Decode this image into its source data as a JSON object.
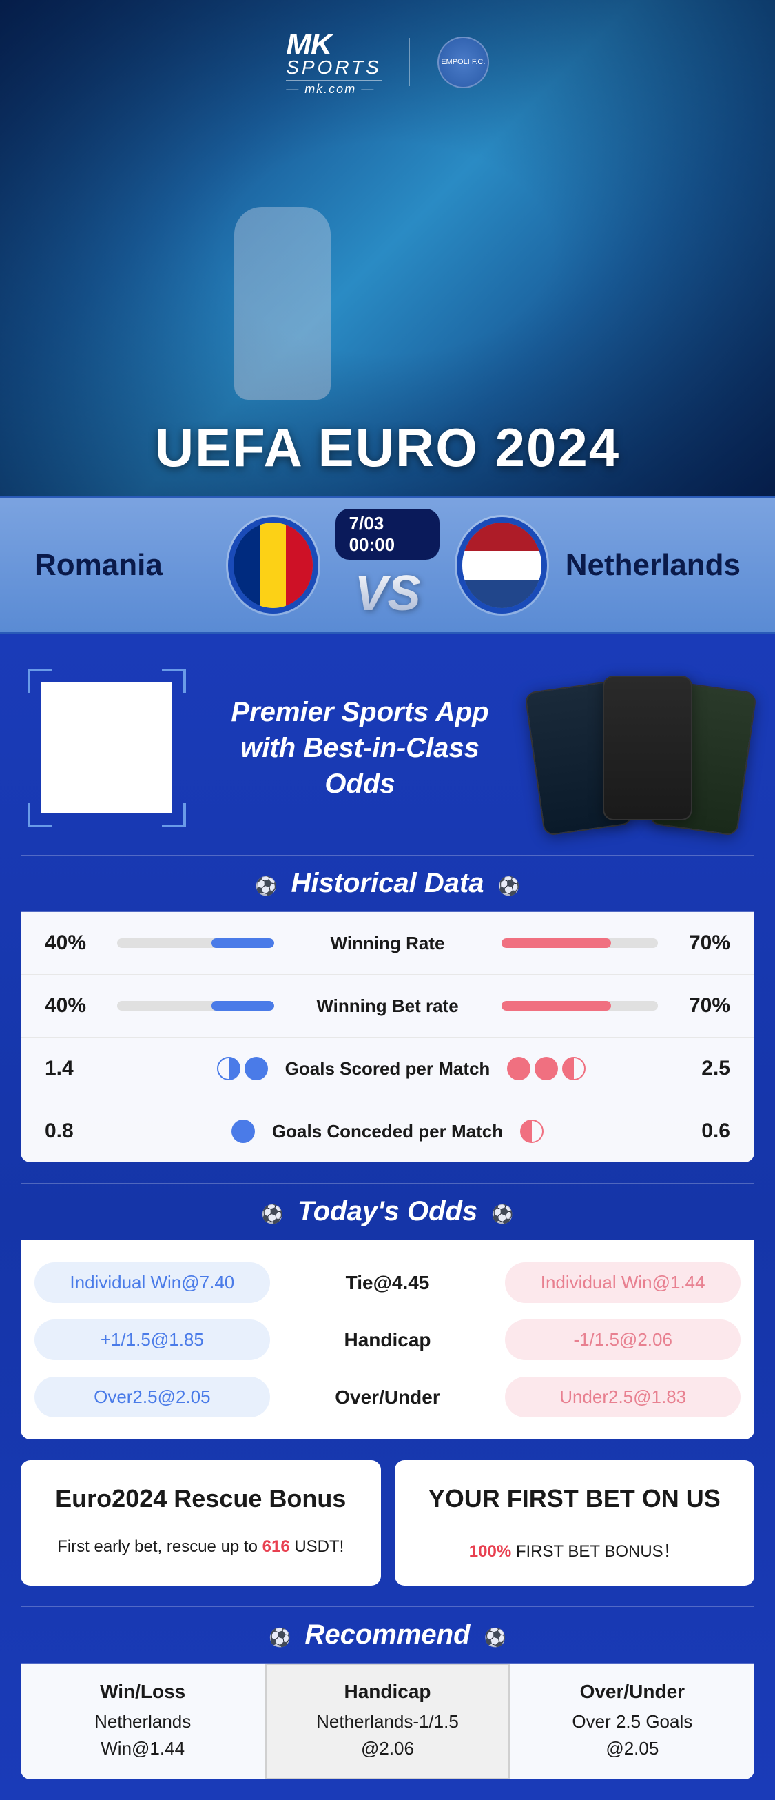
{
  "hero": {
    "brand": "MK",
    "brand_line": "SPORTS",
    "brand_domain": "— mk.com —",
    "title": "UEFA EURO 2024"
  },
  "match": {
    "team_a": "Romania",
    "team_b": "Netherlands",
    "datetime": "7/03 00:00",
    "vs": "VS",
    "flag_a_colors": [
      "#002B7F",
      "#FCD116",
      "#CE1126"
    ],
    "flag_b_colors": [
      "#AE1C28",
      "#FFFFFF",
      "#21468B"
    ]
  },
  "promo": {
    "line1": "Premier Sports App",
    "line2": "with Best-in-Class Odds"
  },
  "historical": {
    "header": "Historical Data",
    "rows": [
      {
        "type": "bar",
        "label": "Winning Rate",
        "left_value": "40%",
        "right_value": "70%",
        "left_pct": 40,
        "right_pct": 70
      },
      {
        "type": "bar",
        "label": "Winning Bet rate",
        "left_value": "40%",
        "right_value": "70%",
        "left_pct": 40,
        "right_pct": 70
      },
      {
        "type": "balls",
        "label": "Goals Scored per Match",
        "left_value": "1.4",
        "right_value": "2.5",
        "left_balls": [
          "half-r",
          "full"
        ],
        "right_balls": [
          "full",
          "full",
          "half"
        ]
      },
      {
        "type": "balls",
        "label": "Goals Conceded per Match",
        "left_value": "0.8",
        "right_value": "0.6",
        "left_balls": [
          "full"
        ],
        "right_balls": [
          "half"
        ]
      }
    ],
    "colors": {
      "left": "#4a7be8",
      "right": "#f07080",
      "track": "#e0e0e0"
    }
  },
  "odds": {
    "header": "Today's Odds",
    "rows": [
      {
        "left": "Individual Win@7.40",
        "center": "Tie@4.45",
        "right": "Individual Win@1.44"
      },
      {
        "left": "+1/1.5@1.85",
        "center": "Handicap",
        "right": "-1/1.5@2.06"
      },
      {
        "left": "Over2.5@2.05",
        "center": "Over/Under",
        "right": "Under2.5@1.83"
      }
    ]
  },
  "bonuses": [
    {
      "title": "Euro2024 Rescue Bonus",
      "desc_pre": "First early bet, rescue up to ",
      "desc_hl": "616",
      "desc_post": " USDT!"
    },
    {
      "title": "YOUR FIRST BET ON US",
      "desc_pre": "",
      "desc_hl": "100%",
      "desc_post": " FIRST BET BONUS！"
    }
  ],
  "recommend": {
    "header": "Recommend",
    "cols": [
      {
        "title": "Win/Loss",
        "line1": "Netherlands",
        "line2": "Win@1.44",
        "highlighted": false
      },
      {
        "title": "Handicap",
        "line1": "Netherlands-1/1.5",
        "line2": "@2.06",
        "highlighted": true
      },
      {
        "title": "Over/Under",
        "line1": "Over 2.5 Goals",
        "line2": "@2.05",
        "highlighted": false
      }
    ]
  }
}
